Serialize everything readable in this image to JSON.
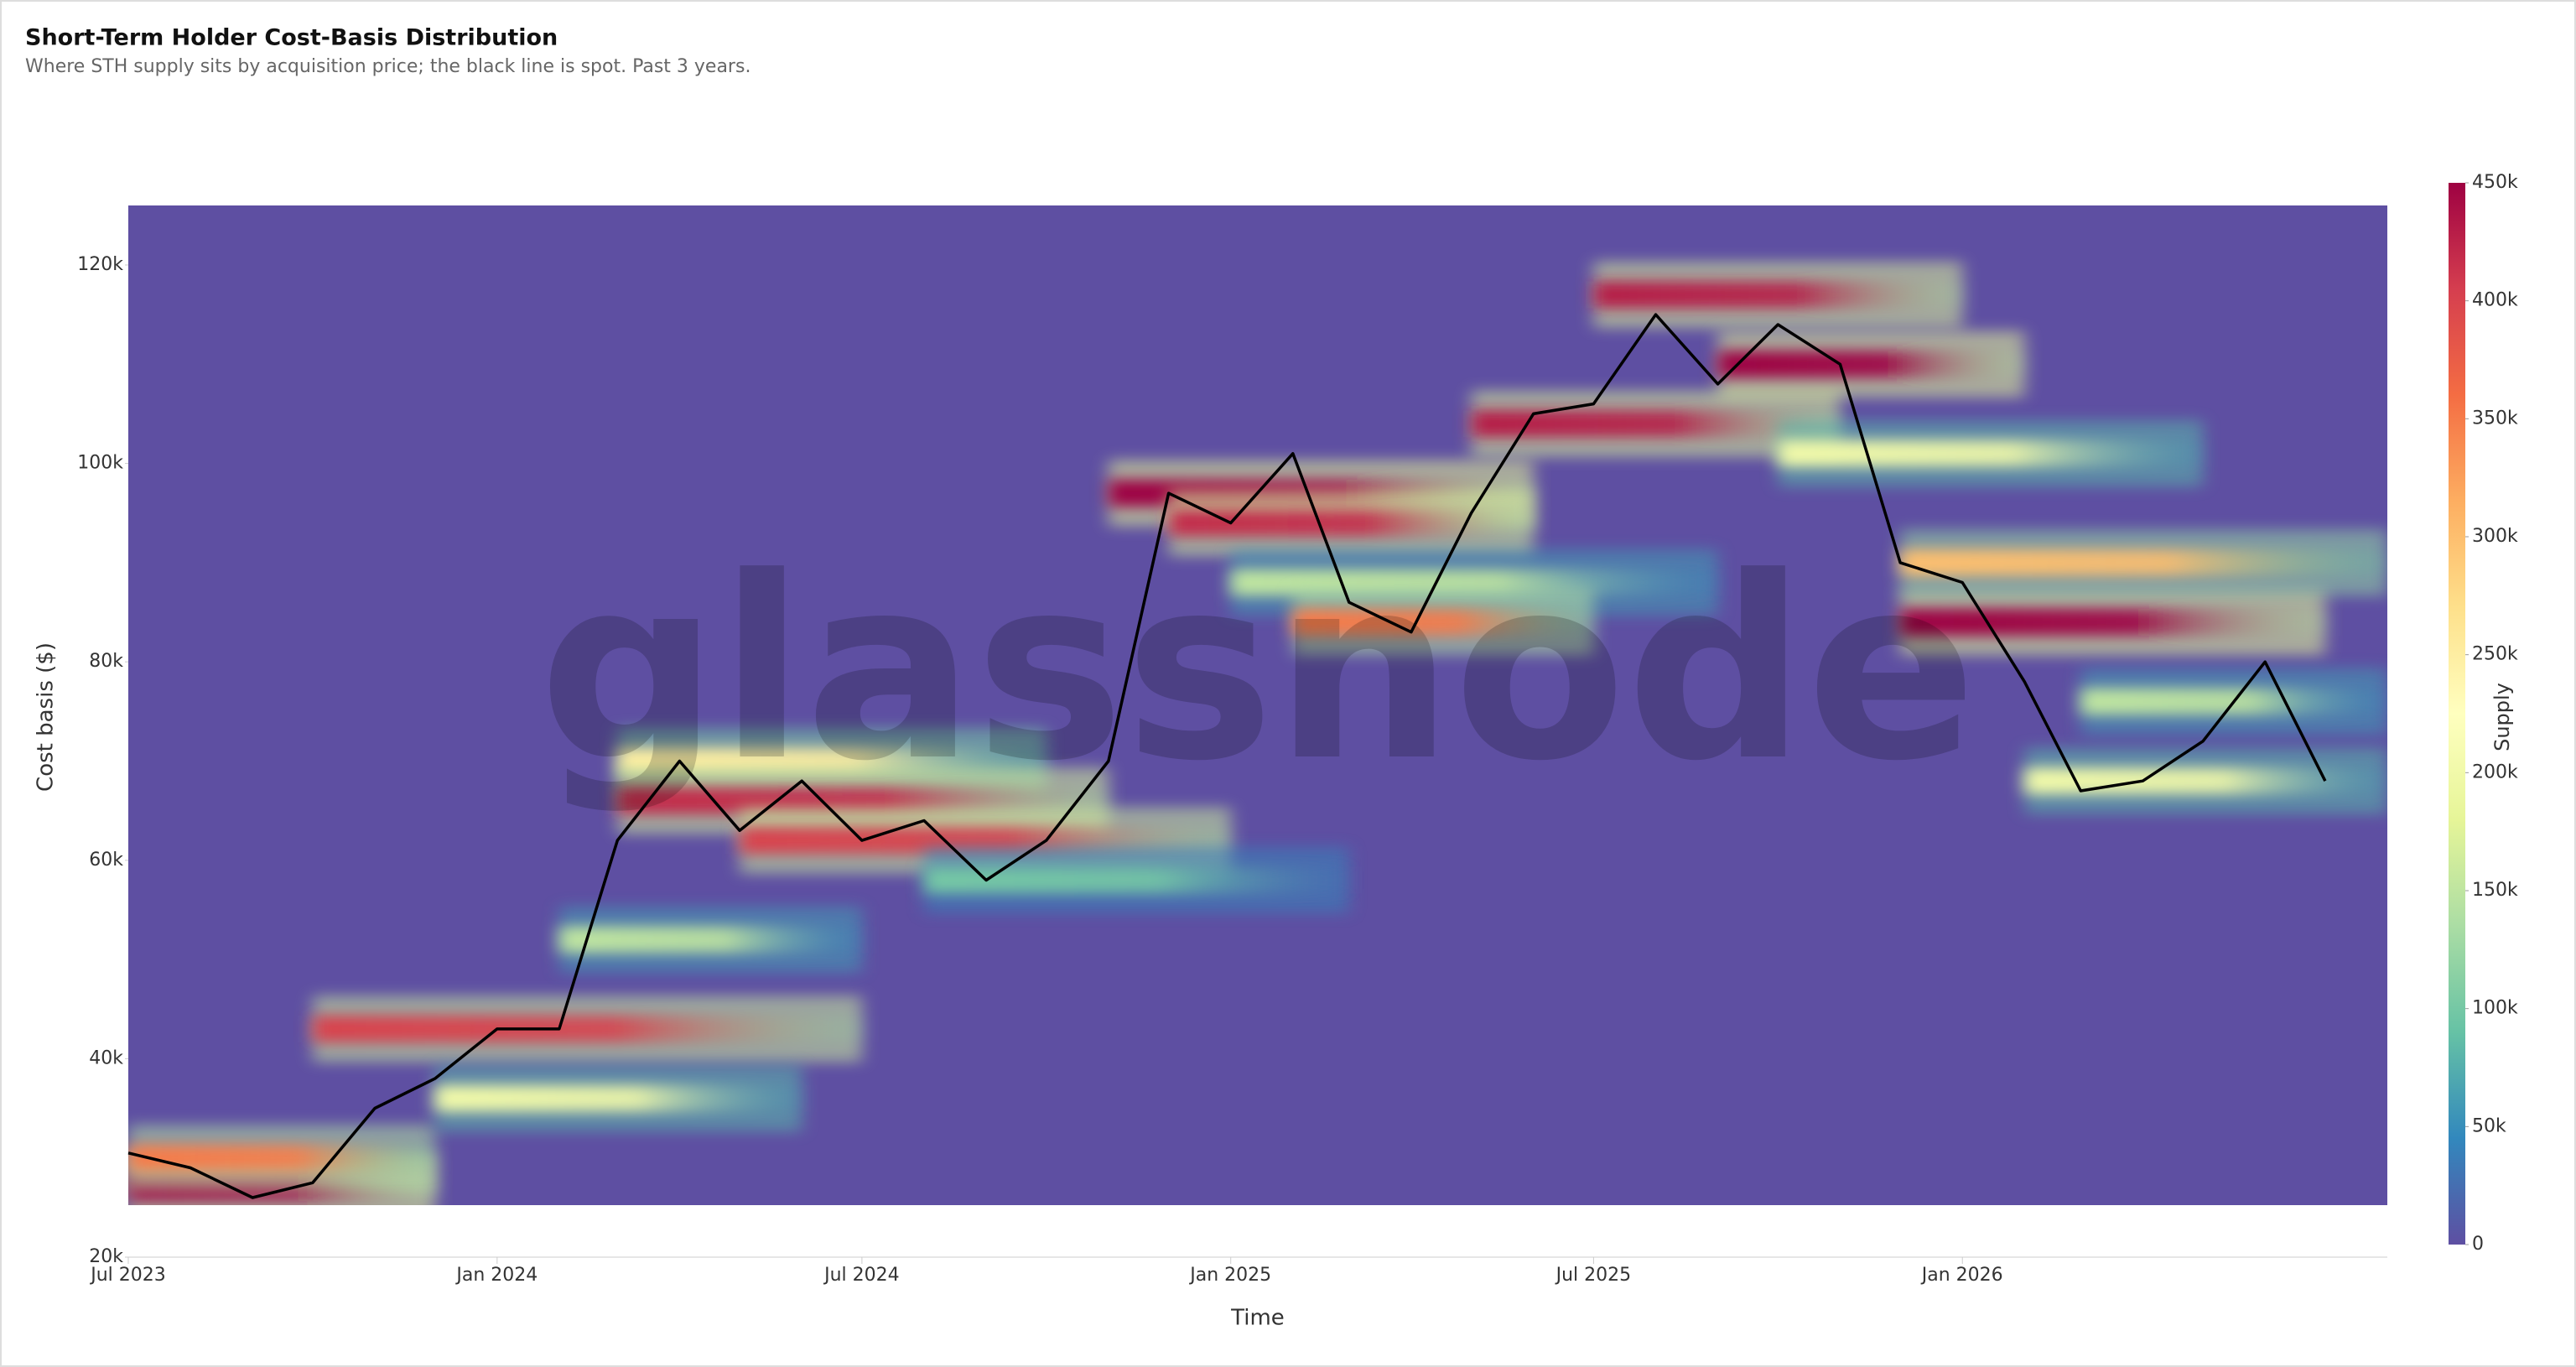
{
  "chart_data": {
    "type": "heatmap",
    "title": "Short-Term Holder Cost-Basis Distribution",
    "subtitle": "Where STH supply sits by acquisition price; the black line is spot. Past 3 years.",
    "watermark": "glassnode",
    "x_label": "Time",
    "y_label": "Cost basis ($)",
    "colorbar_label": "Supply",
    "xlim": [
      "2023-07",
      "2026-08"
    ],
    "xticks": [
      {
        "value": "2023-07",
        "label": "Jul 2023"
      },
      {
        "value": "2024-01",
        "label": "Jan 2024"
      },
      {
        "value": "2024-07",
        "label": "Jul 2024"
      },
      {
        "value": "2025-01",
        "label": "Jan 2025"
      },
      {
        "value": "2025-07",
        "label": "Jul 2025"
      },
      {
        "value": "2026-01",
        "label": "Jan 2026"
      }
    ],
    "ylim": [
      20000,
      126000
    ],
    "yticks": [
      {
        "value": 20000,
        "label": "20k"
      },
      {
        "value": 40000,
        "label": "40k"
      },
      {
        "value": 60000,
        "label": "60k"
      },
      {
        "value": 80000,
        "label": "80k"
      },
      {
        "value": 100000,
        "label": "100k"
      },
      {
        "value": 120000,
        "label": "120k"
      }
    ],
    "zlim": [
      0,
      450000
    ],
    "zticks": [
      {
        "value": 0,
        "label": "0"
      },
      {
        "value": 50000,
        "label": "50k"
      },
      {
        "value": 100000,
        "label": "100k"
      },
      {
        "value": 150000,
        "label": "150k"
      },
      {
        "value": 200000,
        "label": "200k"
      },
      {
        "value": 250000,
        "label": "250k"
      },
      {
        "value": 300000,
        "label": "300k"
      },
      {
        "value": 350000,
        "label": "350k"
      },
      {
        "value": 400000,
        "label": "400k"
      },
      {
        "value": 450000,
        "label": "450k"
      }
    ],
    "colorscale": [
      "#5e4fa2",
      "#3288bd",
      "#66c2a5",
      "#abdda4",
      "#e6f598",
      "#ffffbf",
      "#fee08b",
      "#fdae61",
      "#f46d43",
      "#d53e4f",
      "#9e0142"
    ],
    "clusters": [
      {
        "start": "2023-07",
        "end": "2023-12",
        "y": 27000,
        "supply": 450000
      },
      {
        "start": "2023-07",
        "end": "2023-12",
        "y": 30000,
        "supply": 350000
      },
      {
        "start": "2023-10",
        "end": "2024-07",
        "y": 43000,
        "supply": 400000
      },
      {
        "start": "2023-12",
        "end": "2024-06",
        "y": 36000,
        "supply": 200000
      },
      {
        "start": "2024-02",
        "end": "2024-07",
        "y": 52000,
        "supply": 150000
      },
      {
        "start": "2024-03",
        "end": "2024-10",
        "y": 70000,
        "supply": 250000
      },
      {
        "start": "2024-03",
        "end": "2024-11",
        "y": 66000,
        "supply": 420000
      },
      {
        "start": "2024-05",
        "end": "2025-01",
        "y": 62000,
        "supply": 400000
      },
      {
        "start": "2024-08",
        "end": "2025-03",
        "y": 58000,
        "supply": 100000
      },
      {
        "start": "2024-11",
        "end": "2025-06",
        "y": 97000,
        "supply": 450000
      },
      {
        "start": "2024-12",
        "end": "2025-06",
        "y": 94000,
        "supply": 420000
      },
      {
        "start": "2025-01",
        "end": "2025-09",
        "y": 88000,
        "supply": 150000
      },
      {
        "start": "2025-02",
        "end": "2025-07",
        "y": 84000,
        "supply": 350000
      },
      {
        "start": "2025-05",
        "end": "2025-11",
        "y": 104000,
        "supply": 430000
      },
      {
        "start": "2025-07",
        "end": "2026-01",
        "y": 117000,
        "supply": 430000
      },
      {
        "start": "2025-09",
        "end": "2026-02",
        "y": 110000,
        "supply": 450000
      },
      {
        "start": "2025-10",
        "end": "2026-05",
        "y": 101000,
        "supply": 200000
      },
      {
        "start": "2025-12",
        "end": "2026-07",
        "y": 84000,
        "supply": 450000
      },
      {
        "start": "2025-12",
        "end": "2026-08",
        "y": 90000,
        "supply": 300000
      },
      {
        "start": "2026-02",
        "end": "2026-08",
        "y": 68000,
        "supply": 200000
      },
      {
        "start": "2026-03",
        "end": "2026-08",
        "y": 76000,
        "supply": 150000
      }
    ],
    "series": [
      {
        "name": "Spot",
        "color": "#000000",
        "x": [
          "2023-07",
          "2023-08",
          "2023-09",
          "2023-10",
          "2023-11",
          "2023-12",
          "2024-01",
          "2024-02",
          "2024-03",
          "2024-04",
          "2024-05",
          "2024-06",
          "2024-07",
          "2024-08",
          "2024-09",
          "2024-10",
          "2024-11",
          "2024-12",
          "2025-01",
          "2025-02",
          "2025-03",
          "2025-04",
          "2025-05",
          "2025-06",
          "2025-07",
          "2025-08",
          "2025-09",
          "2025-10",
          "2025-11",
          "2025-12",
          "2026-01",
          "2026-02",
          "2026-03",
          "2026-04",
          "2026-05",
          "2026-06",
          "2026-07"
        ],
        "values": [
          30500,
          29000,
          26000,
          27500,
          35000,
          38000,
          43000,
          43000,
          62000,
          70000,
          63000,
          68000,
          62000,
          64000,
          58000,
          62000,
          70000,
          97000,
          94000,
          101000,
          86000,
          83000,
          95000,
          105000,
          106000,
          115000,
          108000,
          114000,
          110000,
          90000,
          88000,
          78000,
          67000,
          68000,
          72000,
          80000,
          68000
        ]
      }
    ]
  }
}
